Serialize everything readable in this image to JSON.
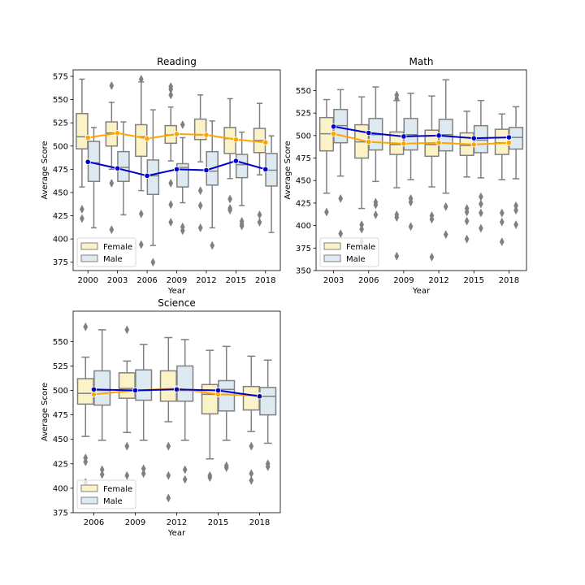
{
  "chart_data": [
    {
      "type": "box",
      "title": "Reading",
      "xlabel": "Year",
      "ylabel": "Average Score",
      "ylim": [
        366,
        582
      ],
      "yticks": [
        375,
        400,
        425,
        450,
        475,
        500,
        525,
        550,
        575
      ],
      "categories": [
        "2000",
        "2003",
        "2006",
        "2009",
        "2012",
        "2015",
        "2018"
      ],
      "legend_position": "lower-left",
      "series": [
        {
          "name": "Female",
          "fill": "#fbf2c7",
          "line_color": "#ffa500",
          "boxes": [
            {
              "whislo": 456,
              "q1": 497,
              "med": 510,
              "q3": 535,
              "whishi": 572,
              "fliers": [
                432,
                422
              ]
            },
            {
              "whislo": 475,
              "q1": 500,
              "med": 514,
              "q3": 526,
              "whishi": 547,
              "fliers": [
                565,
                460,
                410
              ]
            },
            {
              "whislo": 452,
              "q1": 489,
              "med": 510,
              "q3": 523,
              "whishi": 569,
              "fliers": [
                572,
                427,
                394
              ]
            },
            {
              "whislo": 484,
              "q1": 503,
              "med": 512,
              "q3": 522,
              "whishi": 542,
              "fliers": [
                564,
                561,
                555,
                460,
                437,
                418
              ]
            },
            {
              "whislo": 483,
              "q1": 507,
              "med": 512,
              "q3": 529,
              "whishi": 555,
              "fliers": [
                452,
                436,
                412
              ]
            },
            {
              "whislo": 465,
              "q1": 492,
              "med": 508,
              "q3": 520,
              "whishi": 551,
              "fliers": [
                443,
                433,
                431
              ]
            },
            {
              "whislo": 469,
              "q1": 493,
              "med": 506,
              "q3": 519,
              "whishi": 546,
              "fliers": [
                426,
                418
              ]
            }
          ],
          "means": [
            509,
            514,
            508,
            513,
            512,
            507,
            504
          ]
        },
        {
          "name": "Male",
          "fill": "#deeaf1",
          "line_color": "#0000cd",
          "boxes": [
            {
              "whislo": 412,
              "q1": 462,
              "med": 482,
              "q3": 505,
              "whishi": 520,
              "fliers": []
            },
            {
              "whislo": 426,
              "q1": 462,
              "med": 477,
              "q3": 494,
              "whishi": 526,
              "fliers": []
            },
            {
              "whislo": 393,
              "q1": 448,
              "med": 468,
              "q3": 485,
              "whishi": 539,
              "fliers": [
                375
              ]
            },
            {
              "whislo": 439,
              "q1": 456,
              "med": 477,
              "q3": 481,
              "whishi": 509,
              "fliers": [
                523,
                413,
                409
              ]
            },
            {
              "whislo": 412,
              "q1": 458,
              "med": 473,
              "q3": 494,
              "whishi": 527,
              "fliers": [
                393
              ]
            },
            {
              "whislo": 436,
              "q1": 466,
              "med": 480,
              "q3": 491,
              "whishi": 515,
              "fliers": [
                419,
                416,
                414
              ]
            },
            {
              "whislo": 407,
              "q1": 457,
              "med": 474,
              "q3": 492,
              "whishi": 511,
              "fliers": []
            }
          ],
          "means": [
            483,
            476,
            468,
            475,
            474,
            484,
            475
          ]
        }
      ]
    },
    {
      "type": "box",
      "title": "Math",
      "xlabel": "Year",
      "ylabel": "Average Score",
      "ylim": [
        350,
        573
      ],
      "yticks": [
        350,
        375,
        400,
        425,
        450,
        475,
        500,
        525,
        550
      ],
      "categories": [
        "2003",
        "2006",
        "2009",
        "2012",
        "2015",
        "2018"
      ],
      "legend_position": "lower-left",
      "series": [
        {
          "name": "Female",
          "fill": "#fbf2c7",
          "line_color": "#ffa500",
          "boxes": [
            {
              "whislo": 436,
              "q1": 483,
              "med": 502,
              "q3": 520,
              "whishi": 540,
              "fliers": [
                415
              ]
            },
            {
              "whislo": 419,
              "q1": 475,
              "med": 493,
              "q3": 512,
              "whishi": 543,
              "fliers": [
                401,
                396,
                382
              ]
            },
            {
              "whislo": 442,
              "q1": 479,
              "med": 490,
              "q3": 504,
              "whishi": 539,
              "fliers": [
                545,
                541,
                412,
                409,
                366
              ]
            },
            {
              "whislo": 443,
              "q1": 477,
              "med": 490,
              "q3": 506,
              "whishi": 544,
              "fliers": [
                411,
                407,
                365
              ]
            },
            {
              "whislo": 454,
              "q1": 478,
              "med": 489,
              "q3": 503,
              "whishi": 527,
              "fliers": [
                419,
                415,
                405,
                385
              ]
            },
            {
              "whislo": 451,
              "q1": 479,
              "med": 492,
              "q3": 507,
              "whishi": 524,
              "fliers": [
                414,
                404,
                382
              ]
            }
          ],
          "means": [
            502,
            493,
            491,
            492,
            490,
            492
          ]
        },
        {
          "name": "Male",
          "fill": "#deeaf1",
          "line_color": "#0000cd",
          "boxes": [
            {
              "whislo": 455,
              "q1": 492,
              "med": 511,
              "q3": 529,
              "whishi": 551,
              "fliers": [
                430,
                391
              ]
            },
            {
              "whislo": 449,
              "q1": 484,
              "med": 501,
              "q3": 519,
              "whishi": 554,
              "fliers": [
                426,
                423,
                412
              ]
            },
            {
              "whislo": 451,
              "q1": 484,
              "med": 501,
              "q3": 519,
              "whishi": 547,
              "fliers": [
                430,
                426,
                399
              ]
            },
            {
              "whislo": 436,
              "q1": 483,
              "med": 501,
              "q3": 518,
              "whishi": 562,
              "fliers": [
                421,
                390
              ]
            },
            {
              "whislo": 453,
              "q1": 481,
              "med": 495,
              "q3": 511,
              "whishi": 539,
              "fliers": [
                432,
                424,
                414,
                397
              ]
            },
            {
              "whislo": 452,
              "q1": 485,
              "med": 498,
              "q3": 509,
              "whishi": 532,
              "fliers": [
                422,
                417,
                401
              ]
            }
          ],
          "means": [
            510,
            503,
            499,
            500,
            497,
            498
          ]
        }
      ]
    },
    {
      "type": "box",
      "title": "Science",
      "xlabel": "Year",
      "ylabel": "Average Score",
      "ylim": [
        375,
        581
      ],
      "yticks": [
        375,
        400,
        425,
        450,
        475,
        500,
        525,
        550
      ],
      "categories": [
        "2006",
        "2009",
        "2012",
        "2015",
        "2018"
      ],
      "legend_position": "lower-left",
      "series": [
        {
          "name": "Female",
          "fill": "#fbf2c7",
          "line_color": "#ffa500",
          "boxes": [
            {
              "whislo": 453,
              "q1": 486,
              "med": 497,
              "q3": 512,
              "whishi": 534,
              "fliers": [
                565,
                431,
                427,
                406
              ]
            },
            {
              "whislo": 457,
              "q1": 492,
              "med": 502,
              "q3": 518,
              "whishi": 530,
              "fliers": [
                562,
                443,
                413
              ]
            },
            {
              "whislo": 468,
              "q1": 489,
              "med": 501,
              "q3": 520,
              "whishi": 554,
              "fliers": [
                443,
                413,
                390
              ]
            },
            {
              "whislo": 430,
              "q1": 476,
              "med": 496,
              "q3": 506,
              "whishi": 541,
              "fliers": [
                413,
                411
              ]
            },
            {
              "whislo": 458,
              "q1": 480,
              "med": 495,
              "q3": 504,
              "whishi": 535,
              "fliers": [
                443,
                415,
                408
              ]
            }
          ],
          "means": [
            496,
            500,
            502,
            496,
            495
          ]
        },
        {
          "name": "Male",
          "fill": "#deeaf1",
          "line_color": "#0000cd",
          "boxes": [
            {
              "whislo": 449,
              "q1": 485,
              "med": 500,
              "q3": 520,
              "whishi": 562,
              "fliers": [
                419,
                414
              ]
            },
            {
              "whislo": 449,
              "q1": 490,
              "med": 500,
              "q3": 521,
              "whishi": 547,
              "fliers": [
                420,
                415
              ]
            },
            {
              "whislo": 449,
              "q1": 489,
              "med": 500,
              "q3": 525,
              "whishi": 552,
              "fliers": [
                419,
                409
              ]
            },
            {
              "whislo": 449,
              "q1": 479,
              "med": 501,
              "q3": 510,
              "whishi": 545,
              "fliers": [
                423,
                421
              ]
            },
            {
              "whislo": 446,
              "q1": 475,
              "med": 494,
              "q3": 503,
              "whishi": 531,
              "fliers": [
                425,
                422
              ]
            }
          ],
          "means": [
            501,
            500,
            501,
            500,
            494
          ]
        }
      ]
    }
  ]
}
